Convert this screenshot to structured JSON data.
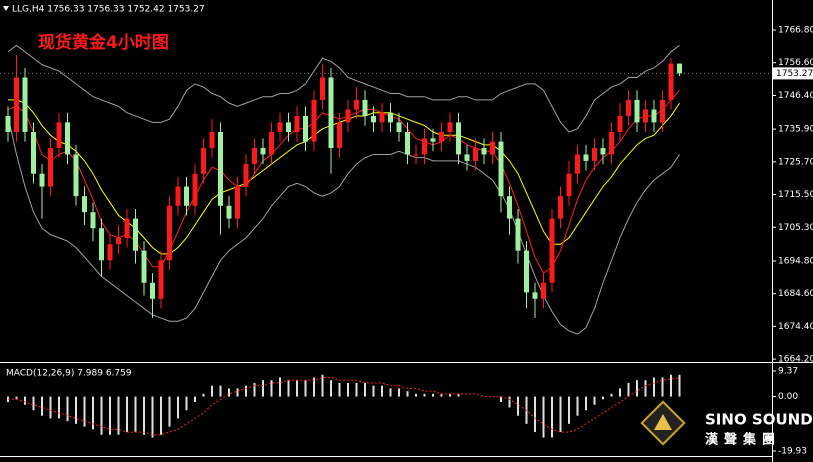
{
  "chart_data": {
    "type": "candlestick",
    "header": "LLG,H4  1756.33 1756.33 1752.42 1753.27",
    "title": "现货黄金4小时图",
    "up_color": "#ff1a1a",
    "down_color": "#9ff09f",
    "open": [
      1740,
      1735,
      1752,
      1735,
      1722,
      1718,
      1730,
      1738,
      1728,
      1715,
      1710,
      1705,
      1695,
      1700,
      1702,
      1708,
      1698,
      1688,
      1683,
      1695,
      1712,
      1718,
      1712,
      1722,
      1730,
      1735,
      1712,
      1708,
      1718,
      1725,
      1730,
      1728,
      1735,
      1738,
      1735,
      1740,
      1732,
      1745,
      1752,
      1730,
      1738,
      1742,
      1745,
      1740,
      1738,
      1741,
      1738,
      1735,
      1728,
      1728,
      1733,
      1732,
      1735,
      1738,
      1728,
      1726,
      1730,
      1728,
      1732,
      1715,
      1708,
      1698,
      1685,
      1683,
      1688,
      1708,
      1715,
      1722,
      1728,
      1726,
      1730,
      1728,
      1735,
      1740,
      1745,
      1738,
      1742,
      1738,
      1745,
      1756.33
    ],
    "high": [
      1743,
      1759,
      1755,
      1738,
      1725,
      1733,
      1741,
      1741,
      1731,
      1718,
      1713,
      1708,
      1703,
      1706,
      1711,
      1711,
      1701,
      1691,
      1698,
      1715,
      1721,
      1721,
      1725,
      1733,
      1739,
      1738,
      1715,
      1721,
      1728,
      1733,
      1733,
      1738,
      1741,
      1741,
      1743,
      1743,
      1748,
      1756,
      1755,
      1741,
      1745,
      1749,
      1748,
      1743,
      1744,
      1744,
      1741,
      1738,
      1731,
      1736,
      1736,
      1738,
      1741,
      1741,
      1731,
      1733,
      1733,
      1735,
      1735,
      1718,
      1711,
      1701,
      1688,
      1691,
      1711,
      1718,
      1726,
      1731,
      1731,
      1733,
      1733,
      1738,
      1744,
      1748,
      1748,
      1745,
      1745,
      1748,
      1758,
      1756.33
    ],
    "low": [
      1732,
      1732,
      1732,
      1719,
      1708,
      1715,
      1727,
      1725,
      1712,
      1706,
      1701,
      1690,
      1692,
      1697,
      1699,
      1694,
      1684,
      1677,
      1680,
      1692,
      1709,
      1709,
      1709,
      1719,
      1727,
      1703,
      1705,
      1705,
      1715,
      1722,
      1725,
      1725,
      1732,
      1732,
      1732,
      1729,
      1729,
      1742,
      1722,
      1727,
      1735,
      1739,
      1737,
      1735,
      1735,
      1735,
      1732,
      1725,
      1725,
      1725,
      1729,
      1729,
      1732,
      1725,
      1723,
      1723,
      1725,
      1725,
      1710,
      1703,
      1694,
      1680,
      1677,
      1680,
      1685,
      1705,
      1712,
      1719,
      1723,
      1723,
      1725,
      1725,
      1732,
      1737,
      1735,
      1735,
      1735,
      1735,
      1742,
      1752.42
    ],
    "close": [
      1735,
      1752,
      1735,
      1722,
      1718,
      1730,
      1738,
      1728,
      1715,
      1710,
      1705,
      1695,
      1700,
      1702,
      1708,
      1698,
      1688,
      1683,
      1695,
      1712,
      1718,
      1712,
      1722,
      1730,
      1735,
      1712,
      1708,
      1718,
      1725,
      1730,
      1728,
      1735,
      1738,
      1735,
      1740,
      1732,
      1745,
      1752,
      1730,
      1738,
      1742,
      1745,
      1740,
      1738,
      1741,
      1738,
      1735,
      1728,
      1728,
      1733,
      1732,
      1735,
      1738,
      1728,
      1726,
      1730,
      1728,
      1732,
      1715,
      1708,
      1698,
      1685,
      1683,
      1688,
      1708,
      1715,
      1722,
      1728,
      1726,
      1730,
      1728,
      1735,
      1740,
      1745,
      1738,
      1742,
      1738,
      1745,
      1756.33,
      1753.27
    ],
    "overlays": [
      {
        "color": "#a0a0a0",
        "values": [
          1760,
          1762,
          1760,
          1758,
          1756,
          1755,
          1754,
          1752,
          1750,
          1748,
          1746,
          1745,
          1744,
          1743,
          1741,
          1740,
          1739,
          1738,
          1738,
          1739,
          1743,
          1748,
          1750,
          1749,
          1747,
          1746,
          1744,
          1743,
          1744,
          1745,
          1746,
          1746,
          1747,
          1747,
          1748,
          1750,
          1754,
          1758,
          1757,
          1755,
          1752,
          1751,
          1750,
          1749,
          1748,
          1747,
          1747,
          1746,
          1746,
          1746,
          1745,
          1745,
          1745,
          1746,
          1746,
          1745,
          1745,
          1745,
          1747,
          1748,
          1749,
          1750,
          1750,
          1748,
          1743,
          1738,
          1735,
          1736,
          1740,
          1745,
          1747,
          1749,
          1750,
          1752,
          1752,
          1754,
          1755,
          1757,
          1760,
          1762
        ]
      },
      {
        "color": "#a0a0a0",
        "values": [
          1740,
          1728,
          1718,
          1710,
          1705,
          1703,
          1702,
          1701,
          1699,
          1696,
          1693,
          1690,
          1688,
          1686,
          1684,
          1682,
          1680,
          1678,
          1677,
          1676,
          1676,
          1677,
          1680,
          1685,
          1690,
          1695,
          1698,
          1700,
          1702,
          1705,
          1708,
          1712,
          1715,
          1718,
          1719,
          1718,
          1716,
          1715,
          1716,
          1718,
          1722,
          1725,
          1727,
          1728,
          1728,
          1728,
          1729,
          1728,
          1727,
          1727,
          1726,
          1726,
          1726,
          1726,
          1725,
          1724,
          1722,
          1720,
          1716,
          1711,
          1704,
          1697,
          1690,
          1684,
          1679,
          1675,
          1673,
          1672,
          1674,
          1680,
          1688,
          1695,
          1702,
          1708,
          1713,
          1717,
          1720,
          1722,
          1724,
          1728
        ]
      },
      {
        "color": "#ffff00",
        "values": [
          1745,
          1745,
          1744,
          1741,
          1737,
          1734,
          1732,
          1731,
          1729,
          1726,
          1722,
          1717,
          1713,
          1709,
          1707,
          1705,
          1702,
          1699,
          1697,
          1697,
          1699,
          1702,
          1706,
          1710,
          1714,
          1716,
          1717,
          1718,
          1719,
          1721,
          1723,
          1725,
          1727,
          1729,
          1731,
          1732,
          1734,
          1736,
          1737,
          1738,
          1739,
          1740,
          1740,
          1741,
          1741,
          1741,
          1740,
          1739,
          1738,
          1737,
          1735,
          1734,
          1734,
          1734,
          1733,
          1732,
          1731,
          1731,
          1729,
          1726,
          1722,
          1716,
          1710,
          1704,
          1700,
          1700,
          1702,
          1706,
          1710,
          1714,
          1718,
          1721,
          1725,
          1728,
          1731,
          1733,
          1734,
          1737,
          1740,
          1744
        ]
      },
      {
        "color": "#ff2020",
        "values": [
          1742,
          1743,
          1741,
          1735,
          1728,
          1726,
          1728,
          1729,
          1726,
          1720,
          1714,
          1707,
          1703,
          1702,
          1703,
          1701,
          1697,
          1693,
          1693,
          1698,
          1704,
          1710,
          1715,
          1720,
          1724,
          1723,
          1720,
          1718,
          1718,
          1722,
          1726,
          1728,
          1731,
          1734,
          1736,
          1736,
          1738,
          1741,
          1740,
          1739,
          1740,
          1741,
          1742,
          1742,
          1741,
          1740,
          1739,
          1736,
          1733,
          1732,
          1731,
          1732,
          1734,
          1733,
          1731,
          1730,
          1729,
          1729,
          1725,
          1719,
          1712,
          1704,
          1696,
          1691,
          1693,
          1698,
          1706,
          1714,
          1720,
          1724,
          1727,
          1729,
          1732,
          1736,
          1739,
          1740,
          1740,
          1742,
          1745,
          1748
        ]
      }
    ],
    "ylim": [
      1663.3,
      1776.15
    ],
    "yticks": [
      {
        "value": 1766.8,
        "label": "1766.80"
      },
      {
        "value": 1756.6,
        "label": "1756.60"
      },
      {
        "value": 1746.4,
        "label": "1746.40"
      },
      {
        "value": 1735.9,
        "label": "1735.90"
      },
      {
        "value": 1725.7,
        "label": "1725.70"
      },
      {
        "value": 1715.5,
        "label": "1715.50"
      },
      {
        "value": 1705.3,
        "label": "1705.30"
      },
      {
        "value": 1694.8,
        "label": "1694.80"
      },
      {
        "value": 1684.6,
        "label": "1684.60"
      },
      {
        "value": 1674.4,
        "label": "1674.40"
      },
      {
        "value": 1664.2,
        "label": "1664.20"
      }
    ],
    "last_price": 1753.27,
    "macd": {
      "label": "MACD(12,26,9) 7.989 6.759",
      "bar_color": "#e0e0e0",
      "signal_color": "#ff2020",
      "histogram": [
        -2,
        -1,
        -3,
        -5,
        -7,
        -8,
        -8,
        -9,
        -10,
        -11,
        -12,
        -14,
        -14,
        -14,
        -13,
        -13,
        -14,
        -15,
        -14,
        -11,
        -8,
        -5,
        -2,
        1,
        4,
        4,
        3,
        3,
        4,
        5,
        6,
        6,
        7,
        6,
        6,
        6,
        7,
        8,
        6,
        5,
        5,
        5,
        5,
        4,
        4,
        3,
        3,
        2,
        1,
        1,
        1,
        1,
        1,
        1,
        0,
        0,
        0,
        0,
        -2,
        -4,
        -7,
        -10,
        -13,
        -15,
        -15,
        -13,
        -10,
        -7,
        -5,
        -3,
        -1,
        1,
        3,
        5,
        6,
        6,
        7,
        7,
        8,
        7.989
      ],
      "signal": [
        -1,
        -1,
        -2,
        -3,
        -4,
        -5,
        -6,
        -7,
        -8,
        -9,
        -10,
        -11,
        -12,
        -12,
        -13,
        -13,
        -13,
        -14,
        -14,
        -13,
        -12,
        -10,
        -8,
        -6,
        -3,
        -1,
        1,
        2,
        3,
        4,
        4,
        5,
        5,
        6,
        6,
        6,
        6,
        7,
        7,
        6,
        6,
        6,
        5,
        5,
        5,
        4,
        4,
        3,
        3,
        2,
        2,
        1,
        1,
        1,
        1,
        1,
        0,
        0,
        0,
        -1,
        -3,
        -5,
        -8,
        -10,
        -12,
        -13,
        -13,
        -12,
        -10,
        -8,
        -6,
        -4,
        -2,
        0,
        2,
        4,
        5,
        6,
        6.5,
        6.759
      ],
      "ylim": [
        -21.4,
        11.93
      ],
      "yticks": [
        9.37,
        {
          "value": 0,
          "label": "0.00"
        },
        -19.93
      ]
    }
  },
  "logo": {
    "name": "SINO SOUND",
    "sub": "漢聲集團"
  }
}
